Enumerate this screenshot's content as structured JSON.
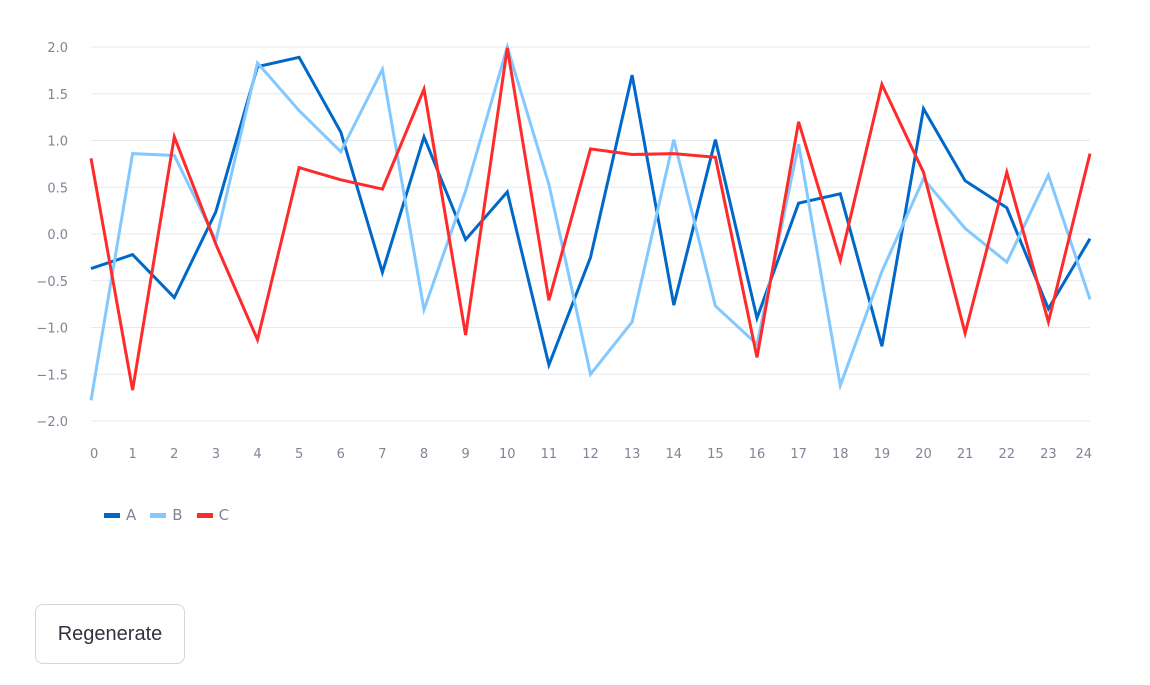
{
  "chart_data": {
    "type": "line",
    "x": [
      0,
      1,
      2,
      3,
      4,
      5,
      6,
      7,
      8,
      9,
      10,
      11,
      12,
      13,
      14,
      15,
      16,
      17,
      18,
      19,
      20,
      21,
      22,
      23,
      24
    ],
    "y_ticks": [
      "2.0",
      "1.5",
      "1.0",
      "0.5",
      "0.0",
      "−0.5",
      "−1.0",
      "−1.5",
      "−2.0"
    ],
    "x_ticks": [
      "0",
      "1",
      "2",
      "3",
      "4",
      "5",
      "6",
      "7",
      "8",
      "9",
      "10",
      "11",
      "12",
      "13",
      "14",
      "15",
      "16",
      "17",
      "18",
      "19",
      "20",
      "21",
      "22",
      "23",
      "24"
    ],
    "ylim": [
      -2.0,
      2.0
    ],
    "xlim": [
      0,
      24
    ],
    "grid": "horizontal",
    "legend_position": "bottom-left",
    "series": [
      {
        "name": "A",
        "color": "#0068c9",
        "values": [
          -0.37,
          -0.22,
          -0.68,
          0.24,
          1.79,
          1.89,
          1.09,
          -0.41,
          1.04,
          -0.06,
          0.45,
          -1.4,
          -0.25,
          1.7,
          -0.76,
          1.01,
          -0.9,
          0.33,
          0.43,
          -1.2,
          1.34,
          0.57,
          0.28,
          -0.8,
          -0.05
        ]
      },
      {
        "name": "B",
        "color": "#83c9ff",
        "values": [
          -1.78,
          0.86,
          0.84,
          -0.07,
          1.83,
          1.32,
          0.88,
          1.76,
          -0.81,
          0.46,
          2.0,
          0.53,
          -1.5,
          -0.94,
          1.01,
          -0.77,
          -1.18,
          0.96,
          -1.62,
          -0.4,
          0.59,
          0.06,
          -0.3,
          0.63,
          -0.7
        ]
      },
      {
        "name": "C",
        "color": "#ff2b2b",
        "values": [
          0.81,
          -1.67,
          1.04,
          -0.11,
          -1.13,
          0.71,
          0.58,
          0.48,
          1.55,
          -1.08,
          1.99,
          -0.71,
          0.91,
          0.85,
          0.86,
          0.82,
          -1.32,
          1.2,
          -0.28,
          1.6,
          0.66,
          -1.06,
          0.66,
          -0.94,
          0.86
        ]
      }
    ]
  },
  "legend": {
    "a_label": "A",
    "b_label": "B",
    "c_label": "C"
  },
  "controls": {
    "regenerate_label": "Regenerate"
  }
}
